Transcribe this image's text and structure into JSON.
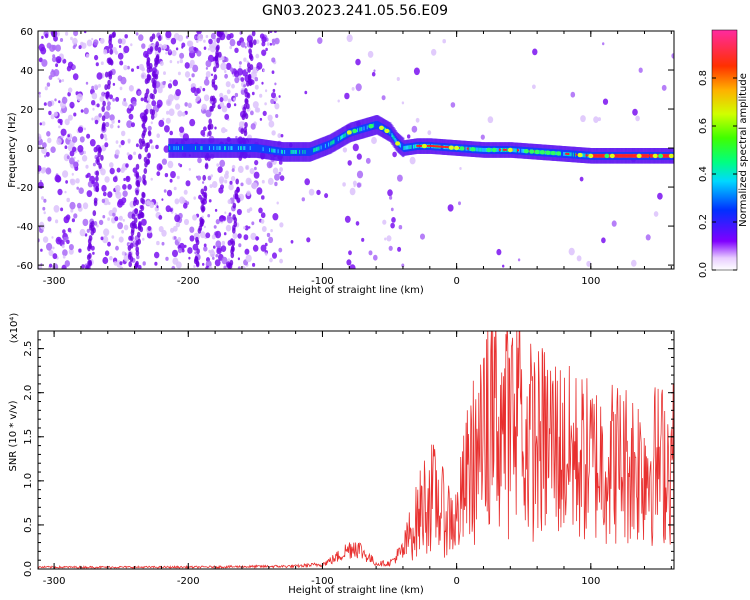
{
  "title": "GN03.2023.241.05.56.E09",
  "colorbar": {
    "label": "Normalized spectral amplitude",
    "ticks": [
      "0.0",
      "0.2",
      "0.4",
      "0.6",
      "0.8"
    ]
  },
  "chart_data": [
    {
      "type": "heatmap",
      "xlabel": "Height of straight line (km)",
      "ylabel": "Frequency (Hz)",
      "xlim": [
        -312,
        162
      ],
      "ylim": [
        -62,
        60
      ],
      "xticks": [
        "-300",
        "-200",
        "-100",
        "0",
        "100"
      ],
      "yticks": [
        "60",
        "40",
        "20",
        "0",
        "-20",
        "-40",
        "-60"
      ],
      "ridge": {
        "name": "",
        "x": [
          -210,
          -180,
          -150,
          -130,
          -110,
          -95,
          -80,
          -70,
          -60,
          -50,
          -45,
          -40,
          -30,
          -20,
          0,
          20,
          40,
          60,
          80,
          100,
          130,
          162
        ],
        "y": [
          0,
          0,
          0,
          -2,
          -2,
          2,
          8,
          10,
          12,
          8,
          3,
          0,
          1,
          1,
          0,
          -1,
          -1,
          -2,
          -3,
          -4,
          -4,
          -4
        ]
      }
    },
    {
      "type": "line",
      "xlabel": "Height of straight line (km)",
      "ylabel": "SNR (10 * v/v)",
      "yscale_label": "(x10⁴)",
      "xlim": [
        -312,
        162
      ],
      "ylim": [
        0,
        2.7
      ],
      "xticks": [
        "-300",
        "-200",
        "-100",
        "0",
        "100"
      ],
      "yticks": [
        "0.0",
        "0.5",
        "1.0",
        "1.5",
        "2.0",
        "2.5"
      ],
      "color": "#e8302f",
      "series": {
        "name": "",
        "x": [
          -312,
          -200,
          -120,
          -100,
          -90,
          -80,
          -75,
          -70,
          -60,
          -50,
          -40,
          -35,
          -30,
          -25,
          -20,
          -15,
          -10,
          0,
          10,
          20,
          30,
          40,
          50,
          60,
          70,
          80,
          100,
          120,
          140,
          162
        ],
        "y": [
          0.02,
          0.02,
          0.03,
          0.05,
          0.12,
          0.22,
          0.25,
          0.18,
          0.06,
          0.06,
          0.2,
          0.4,
          0.55,
          0.75,
          0.85,
          0.8,
          0.65,
          0.55,
          1.2,
          1.4,
          1.8,
          1.6,
          1.55,
          1.45,
          1.5,
          1.35,
          1.25,
          1.25,
          1.2,
          1.25
        ]
      }
    }
  ]
}
